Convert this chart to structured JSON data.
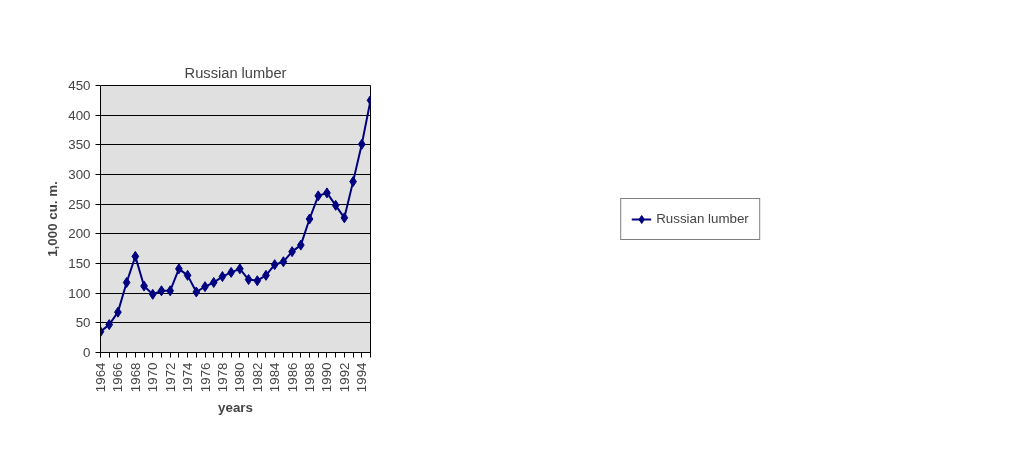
{
  "chart_data": {
    "type": "line",
    "title": "Russian lumber",
    "xlabel": "years",
    "ylabel": "1,000 cu. m.",
    "categories": [
      "1964",
      null,
      "1966",
      null,
      "1968",
      null,
      "1970",
      null,
      "1972",
      null,
      "1974",
      null,
      "1976",
      null,
      "1978",
      null,
      "1980",
      null,
      "1982",
      null,
      "1984",
      null,
      "1986",
      null,
      "1988",
      null,
      "1990",
      null,
      "1992",
      null,
      "1994",
      null
    ],
    "series": [
      {
        "name": "Russian lumber",
        "color": "#000080",
        "values": [
          35,
          47,
          68,
          118,
          162,
          112,
          98,
          104,
          104,
          141,
          130,
          102,
          111,
          118,
          128,
          135,
          141,
          123,
          121,
          130,
          148,
          153,
          170,
          181,
          225,
          264,
          269,
          248,
          227,
          288,
          351,
          425
        ]
      }
    ],
    "ylim": [
      0,
      450
    ],
    "yticks": [
      0,
      50,
      100,
      150,
      200,
      250,
      300,
      350,
      400,
      450
    ],
    "grid": "y",
    "legend": "right",
    "marker": "diamond",
    "line_style": "solid"
  }
}
